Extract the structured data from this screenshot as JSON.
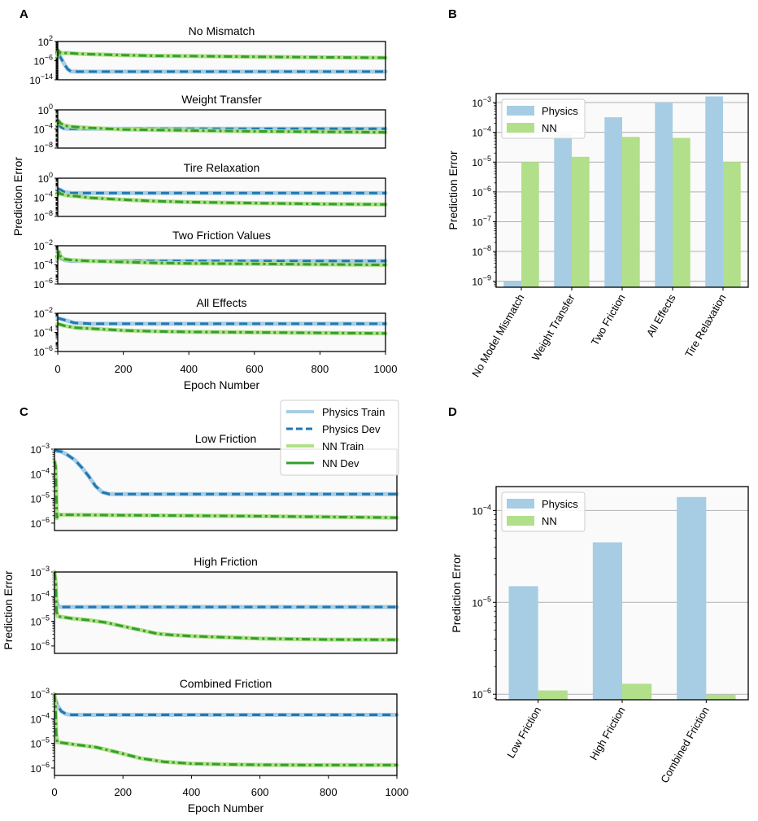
{
  "colors": {
    "physics_light": "#a6cde3",
    "physics_dark": "#1f78b4",
    "nn_light": "#b2df8a",
    "nn_dark": "#33a02c",
    "grid": "#b0b0b0"
  },
  "figure": {
    "panel_labels": [
      "A",
      "B",
      "C",
      "D"
    ],
    "ylabel": "Prediction Error",
    "xlabel": "Epoch Number"
  },
  "chart_data": [
    {
      "panel": "A",
      "type": "line",
      "yscale": "log",
      "xlabel": "Epoch Number",
      "ylabel": "Prediction Error",
      "xlim": [
        0,
        1000
      ],
      "xticks": [
        0,
        200,
        400,
        600,
        800,
        1000
      ],
      "subplots": [
        {
          "title": "No Mismatch",
          "ylim_exp": [
            -14,
            2
          ],
          "yticks_exp": [
            2,
            -6,
            -14
          ],
          "series": [
            {
              "kind": "physics",
              "x": [
                0,
                5,
                10,
                20,
                30,
                40,
                60,
                1000
              ],
              "y_exp": [
                -4,
                -4,
                -5,
                -7.5,
                -9.5,
                -10.5,
                -10.6,
                -10.6
              ]
            },
            {
              "kind": "nn",
              "x": [
                0,
                3,
                6,
                15,
                30,
                60,
                100,
                200,
                300,
                400,
                600,
                800,
                1000
              ],
              "y_exp": [
                -4,
                -2,
                -2.6,
                -2.9,
                -2.8,
                -3.1,
                -3.3,
                -3.7,
                -4.0,
                -4.1,
                -4.4,
                -4.6,
                -4.8
              ]
            }
          ]
        },
        {
          "title": "Weight Transfer",
          "ylim_exp": [
            -8,
            0
          ],
          "yticks_exp": [
            0,
            -4,
            -8
          ],
          "series": [
            {
              "kind": "physics",
              "x": [
                0,
                5,
                10,
                20,
                30,
                1000
              ],
              "y_exp": [
                -3,
                -3.2,
                -3.6,
                -3.9,
                -3.95,
                -3.95
              ]
            },
            {
              "kind": "nn",
              "x": [
                0,
                4,
                8,
                20,
                40,
                100,
                200,
                300,
                400,
                600,
                800,
                1000
              ],
              "y_exp": [
                -3,
                -2.4,
                -2.8,
                -3.3,
                -3.5,
                -3.8,
                -4.1,
                -4.2,
                -4.3,
                -4.5,
                -4.6,
                -4.7
              ]
            }
          ]
        },
        {
          "title": "Tire Relaxation",
          "ylim_exp": [
            -8,
            0
          ],
          "yticks_exp": [
            0,
            -4,
            -8
          ],
          "series": [
            {
              "kind": "physics",
              "x": [
                0,
                10,
                20,
                40,
                1000
              ],
              "y_exp": [
                -2.2,
                -2.5,
                -2.9,
                -3.1,
                -3.1
              ]
            },
            {
              "kind": "nn",
              "x": [
                0,
                5,
                10,
                30,
                60,
                100,
                200,
                300,
                400,
                600,
                800,
                1000
              ],
              "y_exp": [
                -3.5,
                -3.0,
                -3.3,
                -3.6,
                -3.8,
                -4.1,
                -4.5,
                -4.8,
                -5.0,
                -5.2,
                -5.4,
                -5.5
              ]
            }
          ]
        },
        {
          "title": "Two Friction Values",
          "ylim_exp": [
            -6,
            -2
          ],
          "yticks_exp": [
            -2,
            -4,
            -6
          ],
          "series": [
            {
              "kind": "physics",
              "x": [
                0,
                10,
                20,
                40,
                1000
              ],
              "y_exp": [
                -2.9,
                -3.3,
                -3.5,
                -3.6,
                -3.6
              ]
            },
            {
              "kind": "nn",
              "x": [
                0,
                4,
                8,
                20,
                40,
                100,
                200,
                300,
                400,
                600,
                800,
                1000
              ],
              "y_exp": [
                -3.4,
                -2.6,
                -3.1,
                -3.4,
                -3.5,
                -3.6,
                -3.7,
                -3.8,
                -3.85,
                -3.9,
                -3.95,
                -4.0
              ]
            }
          ]
        },
        {
          "title": "All Effects",
          "ylim_exp": [
            -6,
            -2
          ],
          "yticks_exp": [
            -2,
            -4,
            -6
          ],
          "series": [
            {
              "kind": "physics",
              "x": [
                0,
                20,
                50,
                100,
                1000
              ],
              "y_exp": [
                -2.5,
                -2.7,
                -3.0,
                -3.1,
                -3.1
              ]
            },
            {
              "kind": "nn",
              "x": [
                0,
                20,
                50,
                100,
                200,
                300,
                400,
                600,
                800,
                1000
              ],
              "y_exp": [
                -3.1,
                -3.3,
                -3.5,
                -3.6,
                -3.8,
                -3.9,
                -3.95,
                -4.0,
                -4.05,
                -4.1
              ]
            }
          ]
        }
      ]
    },
    {
      "panel": "B",
      "type": "bar",
      "yscale": "log",
      "ylabel": "Prediction Error",
      "ylim_exp": [
        -9.2,
        -2.7
      ],
      "yticks_exp": [
        -3,
        -4,
        -5,
        -6,
        -7,
        -8,
        -9
      ],
      "categories": [
        "No Model Mismatch",
        "Weight Transfer",
        "Two Friction",
        "All Effects",
        "Tire Relaxation"
      ],
      "series": [
        {
          "name": "Physics",
          "values": [
            1e-09,
            9e-05,
            0.00032,
            0.001,
            0.0016
          ]
        },
        {
          "name": "NN",
          "values": [
            1e-05,
            1.5e-05,
            7e-05,
            6.5e-05,
            1e-05
          ]
        }
      ],
      "legend": "top-left",
      "grid": true
    },
    {
      "panel": "C",
      "type": "line",
      "yscale": "log",
      "xlabel": "Epoch Number",
      "ylabel": "Prediction Error",
      "xlim": [
        0,
        1000
      ],
      "xticks": [
        0,
        200,
        400,
        600,
        800,
        1000
      ],
      "legend": [
        "Physics Train",
        "Physics Dev",
        "NN Train",
        "NN Dev"
      ],
      "subplots": [
        {
          "title": "Low Friction",
          "ylim_exp": [
            -6.3,
            -3
          ],
          "yticks_exp": [
            -3,
            -4,
            -5,
            -6
          ],
          "series": [
            {
              "kind": "physics",
              "x": [
                0,
                20,
                40,
                60,
                80,
                100,
                120,
                140,
                160,
                1000
              ],
              "y_exp": [
                -3.05,
                -3.1,
                -3.25,
                -3.45,
                -3.75,
                -4.1,
                -4.5,
                -4.75,
                -4.82,
                -4.82
              ]
            },
            {
              "kind": "nn",
              "x": [
                0,
                3,
                5,
                7,
                10,
                20,
                100,
                200,
                400,
                600,
                800,
                1000
              ],
              "y_exp": [
                -3.5,
                -3.7,
                -4.6,
                -5.8,
                -5.65,
                -5.66,
                -5.67,
                -5.68,
                -5.7,
                -5.72,
                -5.75,
                -5.78
              ]
            }
          ]
        },
        {
          "title": "High Friction",
          "ylim_exp": [
            -6.3,
            -3
          ],
          "yticks_exp": [
            -3,
            -4,
            -5,
            -6
          ],
          "series": [
            {
              "kind": "physics",
              "x": [
                0,
                4,
                10,
                20,
                1000
              ],
              "y_exp": [
                -3.0,
                -4.0,
                -4.4,
                -4.42,
                -4.42
              ]
            },
            {
              "kind": "nn",
              "x": [
                0,
                4,
                6,
                10,
                50,
                100,
                150,
                200,
                250,
                300,
                340,
                400,
                500,
                600,
                700,
                800,
                1000
              ],
              "y_exp": [
                -3.0,
                -3.5,
                -4.6,
                -4.8,
                -4.88,
                -4.95,
                -5.05,
                -5.2,
                -5.35,
                -5.5,
                -5.55,
                -5.6,
                -5.65,
                -5.7,
                -5.72,
                -5.74,
                -5.75
              ]
            }
          ]
        },
        {
          "title": "Combined Friction",
          "ylim_exp": [
            -6.3,
            -3
          ],
          "yticks_exp": [
            -3,
            -4,
            -5,
            -6
          ],
          "series": [
            {
              "kind": "physics",
              "x": [
                0,
                8,
                20,
                35,
                50,
                1000
              ],
              "y_exp": [
                -3.1,
                -3.45,
                -3.7,
                -3.82,
                -3.84,
                -3.84
              ]
            },
            {
              "kind": "nn",
              "x": [
                0,
                3,
                5,
                8,
                20,
                60,
                120,
                180,
                250,
                320,
                400,
                500,
                600,
                800,
                1000
              ],
              "y_exp": [
                -3.0,
                -3.5,
                -4.6,
                -4.95,
                -4.97,
                -5.05,
                -5.15,
                -5.35,
                -5.6,
                -5.75,
                -5.82,
                -5.85,
                -5.87,
                -5.88,
                -5.88
              ]
            }
          ]
        }
      ]
    },
    {
      "panel": "D",
      "type": "bar",
      "yscale": "log",
      "ylabel": "Prediction Error",
      "ylim_exp": [
        -6.06,
        -3.74
      ],
      "yticks_exp": [
        -4,
        -5,
        -6
      ],
      "categories": [
        "Low Friction",
        "High Friction",
        "Combined Friction"
      ],
      "series": [
        {
          "name": "Physics",
          "values": [
            1.5e-05,
            4.5e-05,
            0.00014
          ]
        },
        {
          "name": "NN",
          "values": [
            1.1e-06,
            1.3e-06,
            9.9e-07
          ]
        }
      ],
      "legend": "top-left",
      "grid": true
    }
  ]
}
